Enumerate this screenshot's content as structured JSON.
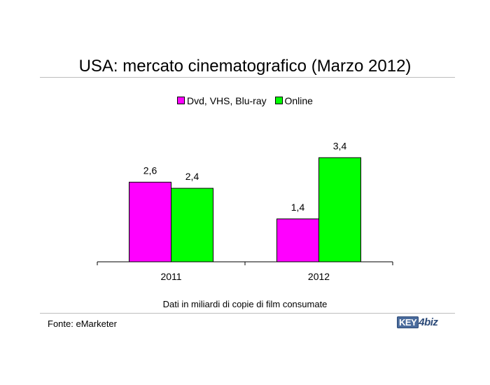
{
  "title": "USA: mercato cinematografico (Marzo 2012)",
  "note": "Dati in miliardi di copie di film consumate",
  "source": "Fonte: eMarketer",
  "logo": {
    "part1": "KEY",
    "part2": "4",
    "part3": "biz"
  },
  "chart_data": {
    "type": "bar",
    "title": "USA: mercato cinematografico (Marzo 2012)",
    "categories": [
      "2011",
      "2012"
    ],
    "series": [
      {
        "name": "Dvd, VHS, Blu-ray",
        "values": [
          2.6,
          1.4
        ],
        "labels": [
          "2,6",
          "1,4"
        ],
        "color": "#ff00ff"
      },
      {
        "name": "Online",
        "values": [
          2.4,
          3.4
        ],
        "labels": [
          "2,4",
          "3,4"
        ],
        "color": "#00ff00"
      }
    ],
    "ylim": [
      0,
      4
    ],
    "grid": false,
    "legend_position": "top"
  }
}
